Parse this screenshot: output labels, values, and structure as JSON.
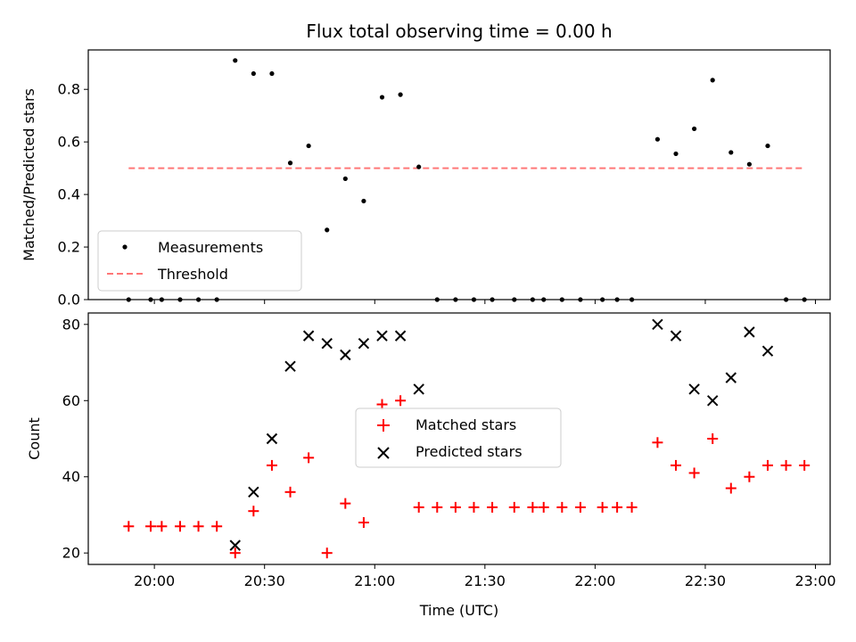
{
  "chart_data": [
    {
      "type": "scatter",
      "title": "Flux total observing time = 0.00 h",
      "xlabel": "",
      "ylabel": "Matched/Predicted stars",
      "ylim": [
        0,
        0.95
      ],
      "yticks": [
        "0.0",
        "0.2",
        "0.4",
        "0.6",
        "0.8"
      ],
      "ytick_values": [
        0,
        0.2,
        0.4,
        0.6,
        0.8
      ],
      "legend_position": "lower-left",
      "series": [
        {
          "name": "Measurements",
          "marker": "dot",
          "color": "#000000",
          "points": [
            [
              "19:53",
              0
            ],
            [
              "19:59",
              0
            ],
            [
              "20:02",
              0
            ],
            [
              "20:07",
              0
            ],
            [
              "20:12",
              0
            ],
            [
              "20:17",
              0
            ],
            [
              "20:22",
              0.91
            ],
            [
              "20:27",
              0.86
            ],
            [
              "20:32",
              0.86
            ],
            [
              "20:37",
              0.52
            ],
            [
              "20:42",
              0.585
            ],
            [
              "20:47",
              0.265
            ],
            [
              "20:52",
              0.46
            ],
            [
              "20:57",
              0.375
            ],
            [
              "21:02",
              0.77
            ],
            [
              "21:07",
              0.78
            ],
            [
              "21:12",
              0.505
            ],
            [
              "21:17",
              0
            ],
            [
              "21:22",
              0
            ],
            [
              "21:27",
              0
            ],
            [
              "21:32",
              0
            ],
            [
              "21:38",
              0
            ],
            [
              "21:43",
              0
            ],
            [
              "21:46",
              0
            ],
            [
              "21:51",
              0
            ],
            [
              "21:56",
              0
            ],
            [
              "22:02",
              0
            ],
            [
              "22:06",
              0
            ],
            [
              "22:10",
              0
            ],
            [
              "22:17",
              0.61
            ],
            [
              "22:22",
              0.555
            ],
            [
              "22:27",
              0.65
            ],
            [
              "22:32",
              0.835
            ],
            [
              "22:37",
              0.56
            ],
            [
              "22:42",
              0.515
            ],
            [
              "22:47",
              0.585
            ],
            [
              "22:52",
              0
            ],
            [
              "22:57",
              0
            ]
          ]
        },
        {
          "name": "Threshold",
          "style": "dashed",
          "color": "#ff7777",
          "points": [
            [
              "19:53",
              0.5
            ],
            [
              "22:57",
              0.5
            ]
          ]
        }
      ]
    },
    {
      "type": "scatter",
      "title": "",
      "xlabel": "Time (UTC)",
      "ylabel": "Count",
      "ylim": [
        17,
        83
      ],
      "yticks": [
        "20",
        "40",
        "60",
        "80"
      ],
      "ytick_values": [
        20,
        40,
        60,
        80
      ],
      "xlim": [
        "19:42",
        "23:04"
      ],
      "xticks": [
        "20:00",
        "20:30",
        "21:00",
        "21:30",
        "22:00",
        "22:30",
        "23:00"
      ],
      "legend_position": "center",
      "series": [
        {
          "name": "Matched stars",
          "marker": "plus",
          "color": "#ff0000",
          "points": [
            [
              "19:53",
              27
            ],
            [
              "19:59",
              27
            ],
            [
              "20:02",
              27
            ],
            [
              "20:07",
              27
            ],
            [
              "20:12",
              27
            ],
            [
              "20:17",
              27
            ],
            [
              "20:22",
              20
            ],
            [
              "20:27",
              31
            ],
            [
              "20:32",
              43
            ],
            [
              "20:37",
              36
            ],
            [
              "20:42",
              45
            ],
            [
              "20:47",
              20
            ],
            [
              "20:52",
              33
            ],
            [
              "20:57",
              28
            ],
            [
              "21:02",
              59
            ],
            [
              "21:07",
              60
            ],
            [
              "21:12",
              32
            ],
            [
              "21:17",
              32
            ],
            [
              "21:22",
              32
            ],
            [
              "21:27",
              32
            ],
            [
              "21:32",
              32
            ],
            [
              "21:38",
              32
            ],
            [
              "21:43",
              32
            ],
            [
              "21:46",
              32
            ],
            [
              "21:51",
              32
            ],
            [
              "21:56",
              32
            ],
            [
              "22:02",
              32
            ],
            [
              "22:06",
              32
            ],
            [
              "22:10",
              32
            ],
            [
              "22:17",
              49
            ],
            [
              "22:22",
              43
            ],
            [
              "22:27",
              41
            ],
            [
              "22:32",
              50
            ],
            [
              "22:37",
              37
            ],
            [
              "22:42",
              40
            ],
            [
              "22:47",
              43
            ],
            [
              "22:52",
              43
            ],
            [
              "22:57",
              43
            ]
          ]
        },
        {
          "name": "Predicted stars",
          "marker": "x",
          "color": "#000000",
          "points": [
            [
              "20:22",
              22
            ],
            [
              "20:27",
              36
            ],
            [
              "20:32",
              50
            ],
            [
              "20:37",
              69
            ],
            [
              "20:42",
              77
            ],
            [
              "20:47",
              75
            ],
            [
              "20:52",
              72
            ],
            [
              "20:57",
              75
            ],
            [
              "21:02",
              77
            ],
            [
              "21:07",
              77
            ],
            [
              "21:12",
              63
            ],
            [
              "22:17",
              80
            ],
            [
              "22:22",
              77
            ],
            [
              "22:27",
              63
            ],
            [
              "22:32",
              60
            ],
            [
              "22:37",
              66
            ],
            [
              "22:42",
              78
            ],
            [
              "22:47",
              73
            ]
          ]
        }
      ]
    }
  ]
}
